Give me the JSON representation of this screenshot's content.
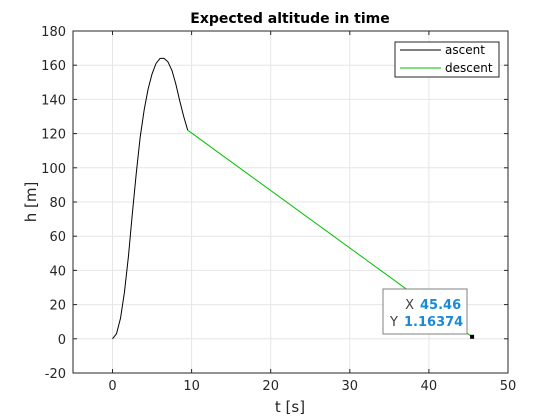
{
  "chart_data": {
    "type": "line",
    "title": "Expected altitude in time",
    "xlabel": "t [s]",
    "ylabel": "h [m]",
    "xlim": [
      -5,
      50
    ],
    "ylim": [
      -20,
      180
    ],
    "xticks": [
      0,
      10,
      20,
      30,
      40,
      50
    ],
    "yticks": [
      -20,
      0,
      20,
      40,
      60,
      80,
      100,
      120,
      140,
      160,
      180
    ],
    "grid": true,
    "legend": {
      "placement": "top-right"
    },
    "series": [
      {
        "name": "ascent",
        "color": "#000000",
        "x": [
          0,
          0.5,
          1,
          1.5,
          2,
          2.5,
          3,
          3.5,
          4,
          4.5,
          5,
          5.5,
          6,
          6.5,
          7,
          7.5,
          8,
          8.5,
          9,
          9.5
        ],
        "y": [
          0,
          3,
          12,
          27,
          48,
          73,
          97,
          118,
          134,
          146,
          155,
          161,
          164,
          164,
          162,
          157,
          149,
          139,
          130,
          122
        ]
      },
      {
        "name": "descent",
        "color": "#00c000",
        "x": [
          9.5,
          45.46
        ],
        "y": [
          122,
          1.16374
        ]
      }
    ],
    "annotations": [
      {
        "type": "datatip",
        "x_key": "X",
        "x_value": "45.46",
        "y_key": "Y",
        "y_value": "1.16374",
        "point": [
          45.46,
          1.16374
        ]
      }
    ]
  }
}
